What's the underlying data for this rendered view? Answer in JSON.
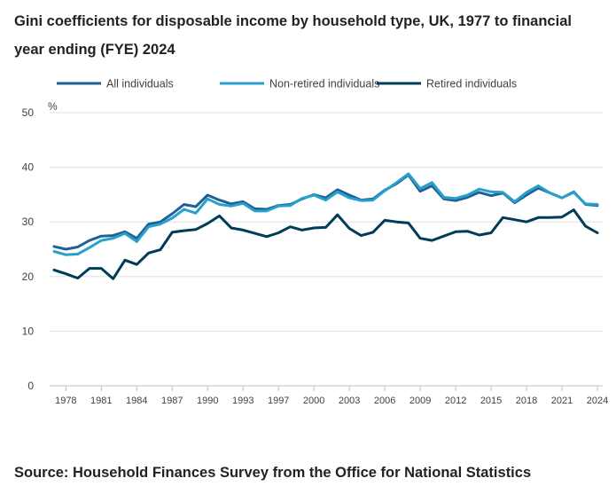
{
  "title": "Gini coefficients for disposable income by household type, UK, 1977 to financial year ending (FYE) 2024",
  "source": "Source: Household Finances Survey from the Office for National Statistics",
  "chart_data": {
    "type": "line",
    "title": "Gini coefficients for disposable income by household type, UK, 1977 to financial year ending (FYE) 2024",
    "ylabel": "%",
    "ylim": [
      0,
      50
    ],
    "yticks": [
      0,
      10,
      20,
      30,
      40,
      50
    ],
    "xticks": [
      "1978",
      "1981",
      "1984",
      "1987",
      "1990",
      "1993",
      "1997",
      "2000",
      "2003",
      "2006",
      "2009",
      "2012",
      "2015",
      "2018",
      "2021",
      "2024"
    ],
    "grid": true,
    "legend": "top",
    "x": [
      "1977",
      "1978",
      "1979",
      "1980",
      "1981",
      "1982",
      "1983",
      "1984",
      "1985",
      "1986",
      "1987",
      "1988",
      "1989",
      "1990",
      "1991",
      "1992",
      "1993",
      "1994/95",
      "1995/96",
      "1996/97",
      "1997/98",
      "1998/99",
      "1999/00",
      "2000/01",
      "2001/02",
      "2002/03",
      "2003/04",
      "2004/05",
      "2005/06",
      "2006/07",
      "2007/08",
      "2008/09",
      "2009/10",
      "2010/11",
      "2011/12",
      "2012/13",
      "2013/14",
      "2014/15",
      "2015/16",
      "2016/17",
      "2017/18",
      "2018/19",
      "2019/20",
      "2020/21",
      "2021/22",
      "2022/23",
      "2023/24"
    ],
    "series": [
      {
        "name": "All individuals",
        "color": "#206095",
        "values": [
          25.5,
          25.0,
          25.4,
          26.6,
          27.4,
          27.5,
          28.2,
          27.0,
          29.6,
          30.0,
          31.5,
          33.2,
          32.8,
          34.9,
          34.0,
          33.3,
          33.7,
          32.4,
          32.3,
          33.0,
          33.2,
          34.2,
          35.0,
          34.4,
          35.9,
          34.9,
          34.0,
          34.2,
          35.8,
          37.0,
          38.6,
          35.6,
          36.6,
          34.2,
          33.9,
          34.5,
          35.4,
          34.8,
          35.3,
          33.5,
          34.9,
          36.2,
          35.3,
          34.4,
          35.5,
          33.2,
          33.0
        ]
      },
      {
        "name": "Non-retired individuals",
        "color": "#27a0cc",
        "values": [
          24.6,
          24.0,
          24.1,
          25.3,
          26.6,
          27.0,
          27.9,
          26.4,
          29.1,
          29.6,
          30.7,
          32.3,
          31.6,
          34.2,
          33.2,
          32.9,
          33.4,
          32.0,
          32.0,
          32.9,
          33.0,
          34.3,
          34.9,
          34.0,
          35.5,
          34.4,
          33.9,
          34.0,
          35.7,
          37.2,
          38.8,
          36.1,
          37.2,
          34.5,
          34.3,
          34.9,
          36.0,
          35.5,
          35.4,
          33.7,
          35.4,
          36.6,
          35.3,
          34.4,
          35.4,
          33.3,
          33.2
        ]
      },
      {
        "name": "Retired individuals",
        "color": "#003c57",
        "values": [
          21.2,
          20.5,
          19.7,
          21.5,
          21.5,
          19.6,
          23.0,
          22.2,
          24.3,
          24.9,
          28.1,
          28.4,
          28.6,
          29.7,
          31.1,
          28.9,
          28.5,
          27.9,
          27.3,
          28.0,
          29.1,
          28.5,
          28.9,
          29.0,
          31.3,
          28.8,
          27.5,
          28.1,
          30.3,
          30.0,
          29.8,
          27.0,
          26.6,
          27.4,
          28.2,
          28.3,
          27.6,
          28.0,
          30.8,
          30.4,
          30.0,
          30.8,
          30.8,
          30.9,
          32.2,
          29.2,
          28.0
        ]
      }
    ]
  }
}
